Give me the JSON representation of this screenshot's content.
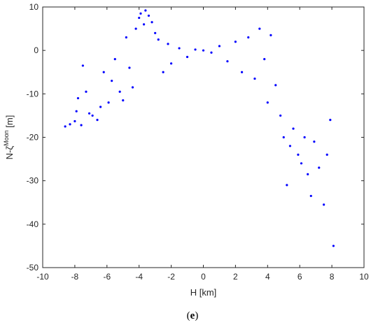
{
  "caption": {
    "open": "(",
    "letter": "e",
    "close": ")"
  },
  "chart_data": {
    "type": "scatter",
    "title": "",
    "xlabel": "H [km]",
    "ylabel": {
      "base": "N-",
      "symbol": "ζ",
      "superscript": "Moon",
      "unit": " [m]"
    },
    "xlim": [
      -10,
      10
    ],
    "ylim": [
      -50,
      10
    ],
    "xticks": [
      -10,
      -8,
      -6,
      -4,
      -2,
      0,
      2,
      4,
      6,
      8,
      10
    ],
    "yticks": [
      -50,
      -40,
      -30,
      -20,
      -10,
      0,
      10
    ],
    "xtick_labels": [
      "-10",
      "-8",
      "-6",
      "-4",
      "-2",
      "0",
      "2",
      "4",
      "6",
      "8",
      "10"
    ],
    "ytick_labels": [
      "-50",
      "-40",
      "-30",
      "-20",
      "-10",
      "0",
      "10"
    ],
    "grid": false,
    "marker_color": "#0000ff",
    "series": [
      {
        "name": "",
        "points": [
          [
            -8.6,
            -17.5
          ],
          [
            -8.3,
            -17.0
          ],
          [
            -8.0,
            -16.3
          ],
          [
            -7.9,
            -14.0
          ],
          [
            -7.8,
            -11.0
          ],
          [
            -7.6,
            -17.2
          ],
          [
            -7.5,
            -3.5
          ],
          [
            -7.3,
            -9.5
          ],
          [
            -7.1,
            -14.5
          ],
          [
            -6.9,
            -15.0
          ],
          [
            -6.6,
            -16.0
          ],
          [
            -6.4,
            -13.0
          ],
          [
            -6.2,
            -5.0
          ],
          [
            -5.9,
            -12.0
          ],
          [
            -5.7,
            -7.0
          ],
          [
            -5.5,
            -2.0
          ],
          [
            -5.2,
            -9.5
          ],
          [
            -5.0,
            -11.5
          ],
          [
            -4.8,
            3.0
          ],
          [
            -4.6,
            -4.0
          ],
          [
            -4.4,
            -8.5
          ],
          [
            -4.2,
            5.0
          ],
          [
            -4.0,
            7.5
          ],
          [
            -3.9,
            8.5
          ],
          [
            -3.7,
            6.0
          ],
          [
            -3.6,
            9.2
          ],
          [
            -3.4,
            8.0
          ],
          [
            -3.2,
            6.5
          ],
          [
            -3.0,
            4.0
          ],
          [
            -2.8,
            2.5
          ],
          [
            -2.5,
            -5.0
          ],
          [
            -2.2,
            1.5
          ],
          [
            -2.0,
            -3.0
          ],
          [
            -1.5,
            0.5
          ],
          [
            -1.0,
            -1.5
          ],
          [
            -0.5,
            0.2
          ],
          [
            0.0,
            0.0
          ],
          [
            0.5,
            -0.5
          ],
          [
            1.0,
            1.0
          ],
          [
            1.5,
            -2.5
          ],
          [
            2.0,
            2.0
          ],
          [
            2.4,
            -5.0
          ],
          [
            2.8,
            3.0
          ],
          [
            3.2,
            -6.5
          ],
          [
            3.5,
            5.0
          ],
          [
            3.8,
            -2.0
          ],
          [
            4.0,
            -12.0
          ],
          [
            4.2,
            3.5
          ],
          [
            4.5,
            -8.0
          ],
          [
            4.8,
            -15.0
          ],
          [
            5.0,
            -20.0
          ],
          [
            5.2,
            -31.0
          ],
          [
            5.4,
            -22.0
          ],
          [
            5.6,
            -18.0
          ],
          [
            5.9,
            -24.0
          ],
          [
            6.1,
            -26.0
          ],
          [
            6.3,
            -20.0
          ],
          [
            6.5,
            -28.5
          ],
          [
            6.7,
            -33.5
          ],
          [
            6.9,
            -21.0
          ],
          [
            7.2,
            -27.0
          ],
          [
            7.5,
            -35.5
          ],
          [
            7.7,
            -24.0
          ],
          [
            7.9,
            -16.0
          ],
          [
            8.1,
            -45.0
          ]
        ]
      }
    ]
  }
}
